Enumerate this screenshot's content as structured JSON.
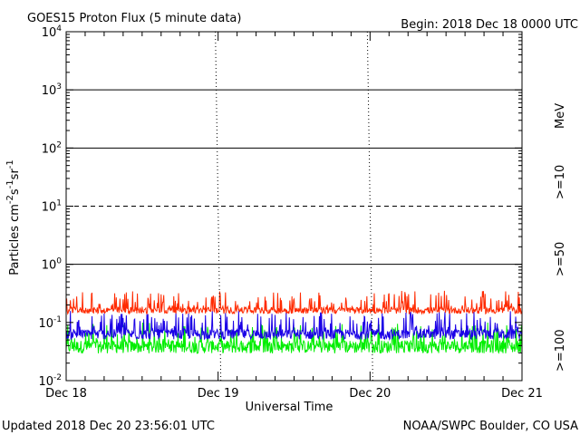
{
  "title": "GOES15 Proton Flux (5 minute data)",
  "begin_label": "Begin: 2018 Dec 18 0000 UTC",
  "updated_label": "Updated 2018 Dec 20 23:56:01 UTC",
  "credit_label": "NOAA/SWPC Boulder, CO USA",
  "colors": {
    "gt10": "#ff2a00",
    "gt50": "#1a00e6",
    "gt100": "#00ee00",
    "axis": "#000000"
  },
  "chart_data": {
    "type": "line",
    "title": "GOES15 Proton Flux (5 minute data)",
    "xlabel": "Universal Time",
    "ylabel": "Particles cm-2 s-1 sr-1",
    "y_scale": "log",
    "ylim": [
      0.01,
      10000
    ],
    "y_ticks": [
      {
        "value": 10000,
        "base": "10",
        "exp": "4"
      },
      {
        "value": 1000,
        "base": "10",
        "exp": "3"
      },
      {
        "value": 100,
        "base": "10",
        "exp": "2"
      },
      {
        "value": 10,
        "base": "10",
        "exp": "1"
      },
      {
        "value": 1,
        "base": "10",
        "exp": "0"
      },
      {
        "value": 0.1,
        "base": "10",
        "exp": "-1"
      },
      {
        "value": 0.01,
        "base": "10",
        "exp": "-2"
      }
    ],
    "x_tick_labels": [
      "Dec 18",
      "Dec 19",
      "Dec 20",
      "Dec 21"
    ],
    "x_range_days": [
      0,
      3
    ],
    "interval_minutes": 5,
    "dashed_level": 10,
    "solid_levels": [
      1000,
      100,
      1
    ],
    "energy_unit": "MeV",
    "series": [
      {
        "name": ">=10",
        "color": "#ff2a00",
        "baseline": 0.165,
        "spread": [
          0.13,
          0.35
        ]
      },
      {
        "name": ">=50",
        "color": "#1a00e6",
        "baseline": 0.065,
        "spread": [
          0.045,
          0.16
        ]
      },
      {
        "name": ">=100",
        "color": "#00ee00",
        "baseline": 0.04,
        "spread": [
          0.025,
          0.1
        ]
      }
    ]
  }
}
